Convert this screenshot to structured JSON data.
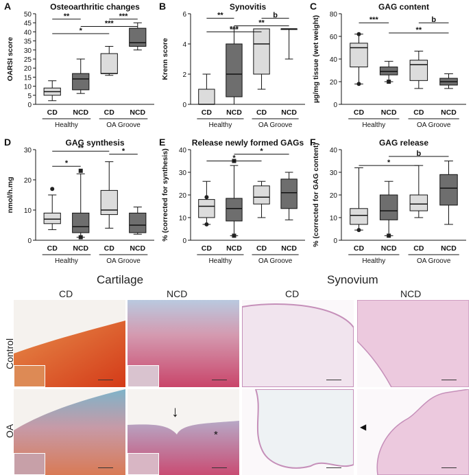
{
  "chart_data": [
    {
      "panel": "A",
      "type": "box",
      "title": "Osteoarthritic changes",
      "ylabel": "OARSI score",
      "ylim": [
        0,
        50
      ],
      "yticks": [
        0,
        5,
        10,
        15,
        20,
        25,
        30,
        35,
        40,
        45,
        50
      ],
      "categories": [
        "CD",
        "NCD",
        "CD",
        "NCD"
      ],
      "groups": [
        "Healthy",
        "OA Groove"
      ],
      "boxes": [
        {
          "min": 2,
          "q1": 5,
          "median": 7,
          "q3": 9,
          "max": 13,
          "fill": "#dcdcdc",
          "outliers": []
        },
        {
          "min": 6,
          "q1": 8,
          "median": 14,
          "q3": 17,
          "max": 25,
          "fill": "#6e6e6e",
          "outliers": []
        },
        {
          "min": 16,
          "q1": 17,
          "median": 17,
          "q3": 28,
          "max": 32,
          "fill": "#dcdcdc",
          "outliers": []
        },
        {
          "min": 30,
          "q1": 32,
          "median": 34,
          "q3": 42,
          "max": 45,
          "fill": "#6e6e6e",
          "outliers": []
        }
      ],
      "brackets": [
        {
          "from": 0,
          "to": 1,
          "label": "**",
          "y": 47
        },
        {
          "from": 2,
          "to": 3,
          "label": "***",
          "y": 47
        },
        {
          "from": 1,
          "to": 3,
          "label": "***",
          "y": 43
        },
        {
          "from": 0,
          "to": 2,
          "label": "*",
          "y": 39
        }
      ]
    },
    {
      "panel": "B",
      "type": "box",
      "title": "Synovitis",
      "ylabel": "Krenn score",
      "ylim": [
        0,
        6
      ],
      "yticks": [
        0,
        2,
        4,
        6
      ],
      "categories": [
        "CD",
        "NCD",
        "CD",
        "NCD"
      ],
      "groups": [
        "Healthy",
        "OA Groove"
      ],
      "boxes": [
        {
          "min": 0,
          "q1": 0,
          "median": 0,
          "q3": 1,
          "max": 2,
          "fill": "#dcdcdc",
          "outliers": []
        },
        {
          "min": 0,
          "q1": 0.5,
          "median": 2,
          "q3": 4,
          "max": 5,
          "fill": "#6e6e6e",
          "outliers": []
        },
        {
          "min": 1,
          "q1": 2,
          "median": 4,
          "q3": 5,
          "max": 5,
          "fill": "#dcdcdc",
          "outliers": []
        },
        {
          "min": 3,
          "q1": 5,
          "median": 5,
          "q3": 5,
          "max": 5,
          "fill": "#6e6e6e",
          "outliers": []
        }
      ],
      "brackets": [
        {
          "from": 0,
          "to": 1,
          "label": "**",
          "y": 5.7
        },
        {
          "from": 2,
          "to": 3,
          "label": "b",
          "y": 5.7
        },
        {
          "from": 1,
          "to": 3,
          "label": "**",
          "y": 5.2
        },
        {
          "from": 0,
          "to": 2,
          "label": "***",
          "y": 4.8
        }
      ]
    },
    {
      "panel": "C",
      "type": "box",
      "title": "GAG content",
      "ylabel": "µg/mg tissue (wet weight)",
      "ylim": [
        0,
        80
      ],
      "yticks": [
        0,
        20,
        40,
        60,
        80
      ],
      "categories": [
        "CD",
        "NCD",
        "CD",
        "NCD"
      ],
      "groups": [
        "Healthy",
        "OA Groove"
      ],
      "boxes": [
        {
          "min": 18,
          "q1": 33,
          "median": 50,
          "q3": 54,
          "max": 62,
          "fill": "#dcdcdc",
          "outliers": [
            18,
            62
          ]
        },
        {
          "min": 20,
          "q1": 26,
          "median": 29,
          "q3": 33,
          "max": 38,
          "fill": "#6e6e6e",
          "outliers": [
            20
          ]
        },
        {
          "min": 14,
          "q1": 21,
          "median": 35,
          "q3": 39,
          "max": 47,
          "fill": "#dcdcdc",
          "outliers": []
        },
        {
          "min": 14,
          "q1": 17,
          "median": 20,
          "q3": 23,
          "max": 27,
          "fill": "#6e6e6e",
          "outliers": []
        }
      ],
      "brackets": [
        {
          "from": 0,
          "to": 1,
          "label": "***",
          "y": 72
        },
        {
          "from": 2,
          "to": 3,
          "label": "b",
          "y": 72
        },
        {
          "from": 1,
          "to": 3,
          "label": "**",
          "y": 63
        }
      ]
    },
    {
      "panel": "D",
      "type": "box",
      "title": "GAG synthesis",
      "ylabel": "nmol/h.mg",
      "ylim": [
        0,
        30
      ],
      "yticks": [
        0,
        10,
        20,
        30
      ],
      "categories": [
        "CD",
        "NCD",
        "CD",
        "NCD"
      ],
      "groups": [
        "Healthy",
        "OA Groove"
      ],
      "boxes": [
        {
          "min": 3.5,
          "q1": 5.5,
          "median": 7,
          "q3": 9,
          "max": 15,
          "fill": "#dcdcdc",
          "outliers": [
            17
          ]
        },
        {
          "min": 1,
          "q1": 2.5,
          "median": 4.5,
          "q3": 9,
          "max": 22,
          "fill": "#6e6e6e",
          "outliers": [
            23,
            1
          ]
        },
        {
          "min": 4,
          "q1": 8.5,
          "median": 10,
          "q3": 16.5,
          "max": 26,
          "fill": "#dcdcdc",
          "outliers": []
        },
        {
          "min": 2,
          "q1": 2.5,
          "median": 5,
          "q3": 9,
          "max": 11,
          "fill": "#6e6e6e",
          "outliers": []
        }
      ],
      "brackets": [
        {
          "from": 0,
          "to": 2,
          "label": "**",
          "y": 29.5
        },
        {
          "from": 2,
          "to": 3,
          "label": "*",
          "y": 28.5
        },
        {
          "from": 0,
          "to": 1,
          "label": "*",
          "y": 24.5
        }
      ]
    },
    {
      "panel": "E",
      "type": "box",
      "title": "Release newly formed GAGs",
      "ylabel": "% (corrected for synthesis)",
      "ylim": [
        0,
        40
      ],
      "yticks": [
        0,
        10,
        20,
        30,
        40
      ],
      "categories": [
        "CD",
        "NCD",
        "CD",
        "NCD"
      ],
      "groups": [
        "Healthy",
        "OA Groove"
      ],
      "boxes": [
        {
          "min": 7,
          "q1": 10,
          "median": 15,
          "q3": 18,
          "max": 26,
          "fill": "#dcdcdc",
          "outliers": [
            19,
            7
          ]
        },
        {
          "min": 2,
          "q1": 8.5,
          "median": 14,
          "q3": 18.5,
          "max": 33,
          "fill": "#6e6e6e",
          "outliers": [
            35,
            2
          ]
        },
        {
          "min": 10,
          "q1": 16,
          "median": 19,
          "q3": 24,
          "max": 26,
          "fill": "#dcdcdc",
          "outliers": []
        },
        {
          "min": 9,
          "q1": 14,
          "median": 21,
          "q3": 27,
          "max": 30,
          "fill": "#6e6e6e",
          "outliers": []
        }
      ],
      "brackets": [
        {
          "from": 1,
          "to": 3,
          "label": "*",
          "y": 38
        },
        {
          "from": 0,
          "to": 2,
          "label": "*",
          "y": 35
        }
      ]
    },
    {
      "panel": "F",
      "type": "box",
      "title": "GAG release",
      "ylabel": "% (corrected for GAG content)",
      "ylim": [
        0,
        40
      ],
      "yticks": [
        0,
        10,
        20,
        30,
        40
      ],
      "categories": [
        "CD",
        "NCD",
        "CD",
        "NCD"
      ],
      "groups": [
        "Healthy",
        "OA Groove"
      ],
      "boxes": [
        {
          "min": 4.5,
          "q1": 7,
          "median": 11,
          "q3": 14,
          "max": 32,
          "fill": "#dcdcdc",
          "outliers": [
            4.5
          ]
        },
        {
          "min": 2,
          "q1": 9,
          "median": 13,
          "q3": 20,
          "max": 26,
          "fill": "#6e6e6e",
          "outliers": [
            2
          ]
        },
        {
          "min": 10,
          "q1": 13,
          "median": 16,
          "q3": 20,
          "max": 33,
          "fill": "#dcdcdc",
          "outliers": []
        },
        {
          "min": 7,
          "q1": 15.5,
          "median": 23,
          "q3": 29,
          "max": 35,
          "fill": "#6e6e6e",
          "outliers": []
        }
      ],
      "brackets": [
        {
          "from": 1,
          "to": 3,
          "label": "b",
          "y": 37
        },
        {
          "from": 0,
          "to": 2,
          "label": "*",
          "y": 33
        }
      ]
    }
  ],
  "micrographs": {
    "section_titles": {
      "cartilage": "Cartilage",
      "synovium": "Synovium"
    },
    "column_labels": [
      "CD",
      "NCD",
      "CD",
      "NCD"
    ],
    "row_labels": [
      "Control",
      "OA"
    ],
    "overlay_marks": {
      "asterisk": "*"
    },
    "colors": {
      "cartilage_orange": "#e06a2a",
      "cartilage_red": "#d53a1c",
      "cartilage_pink": "#cf8fa6",
      "cartilage_blue": "#8ab5c8",
      "synovium_pink": "#e8cfe0",
      "synovium_line": "#c58fb9"
    }
  }
}
